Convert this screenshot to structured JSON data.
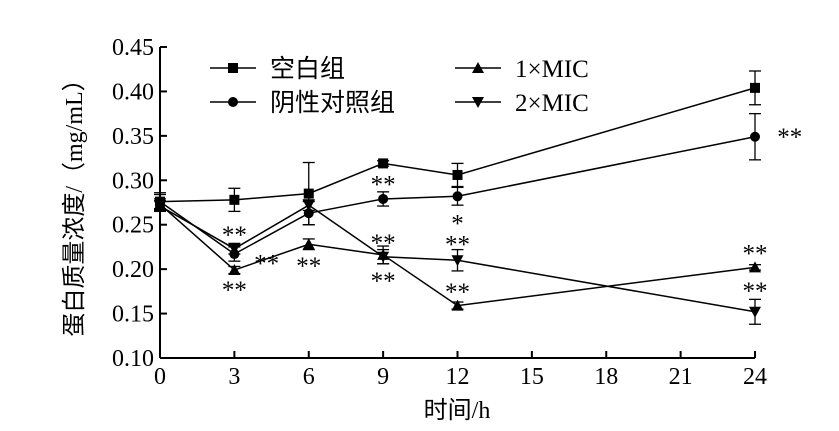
{
  "chart_data": {
    "type": "line",
    "xlabel": "时间/h",
    "ylabel": "蛋白质量浓度/（mg/mL）",
    "x_ticks": [
      0,
      3,
      6,
      9,
      12,
      15,
      18,
      21,
      24
    ],
    "y_ticks": [
      "0.10",
      "0.15",
      "0.20",
      "0.25",
      "0.30",
      "0.35",
      "0.40",
      "0.45"
    ],
    "xlim": [
      0,
      24
    ],
    "ylim": [
      0.1,
      0.45
    ],
    "x": [
      0,
      3,
      6,
      9,
      12,
      24
    ],
    "grid": false,
    "legend_position": "top",
    "series": [
      {
        "name": "空白组",
        "marker": "square",
        "values": [
          0.276,
          0.278,
          0.285,
          0.319,
          0.306,
          0.404
        ],
        "errors": [
          0.01,
          0.013,
          0.035,
          0.003,
          0.013,
          0.019
        ]
      },
      {
        "name": "阴性对照组",
        "marker": "circle",
        "values": [
          0.276,
          0.217,
          0.263,
          0.279,
          0.282,
          0.349
        ],
        "errors": [
          0.008,
          0.008,
          0.013,
          0.008,
          0.01,
          0.026
        ]
      },
      {
        "name": "1×MIC",
        "marker": "triangle-up",
        "values": [
          0.273,
          0.199,
          0.228,
          0.216,
          0.159,
          0.202
        ],
        "errors": [
          0.006,
          0.004,
          0.006,
          0.01,
          0.004,
          0.003
        ]
      },
      {
        "name": "2×MIC",
        "marker": "triangle-down",
        "values": [
          0.271,
          0.223,
          0.272,
          0.214,
          0.21,
          0.152
        ],
        "errors": [
          0.006,
          0.006,
          0.006,
          0.008,
          0.012,
          0.014
        ]
      }
    ],
    "annotations": [
      {
        "text": "**",
        "x": 3,
        "y": 0.243
      },
      {
        "text": "**",
        "x": 3,
        "y": 0.181
      },
      {
        "text": "**",
        "x": 4.3,
        "y": 0.211
      },
      {
        "text": "**",
        "x": 6,
        "y": 0.208
      },
      {
        "text": "**",
        "x": 9,
        "y": 0.3
      },
      {
        "text": "**",
        "x": 9,
        "y": 0.234
      },
      {
        "text": "**",
        "x": 9,
        "y": 0.191
      },
      {
        "text": "*",
        "x": 12,
        "y": 0.256
      },
      {
        "text": "**",
        "x": 12,
        "y": 0.232
      },
      {
        "text": "**",
        "x": 12,
        "y": 0.179
      },
      {
        "text": "**",
        "x": 25.4,
        "y": 0.353
      },
      {
        "text": "**",
        "x": 24,
        "y": 0.222
      },
      {
        "text": "**",
        "x": 24,
        "y": 0.18
      }
    ]
  }
}
